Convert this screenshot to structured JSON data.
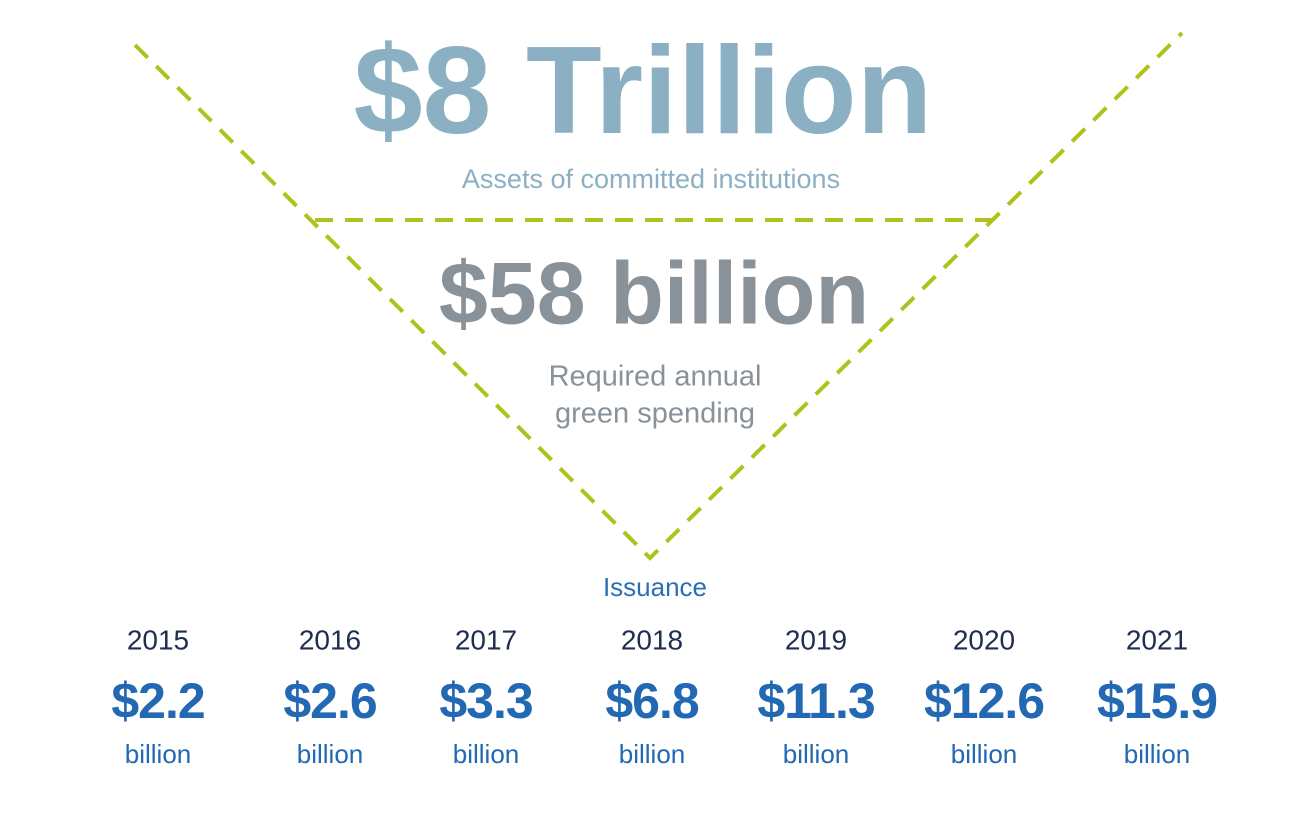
{
  "top": {
    "amount": "$8 Trillion",
    "caption": "Assets of committed institutions"
  },
  "middle": {
    "amount": "$58 billion",
    "caption": [
      "Required annual",
      "green spending"
    ]
  },
  "issuance": {
    "title": "Issuance",
    "items": [
      {
        "year": "2015",
        "amount": "$2.2",
        "unit": "billion"
      },
      {
        "year": "2016",
        "amount": "$2.6",
        "unit": "billion"
      },
      {
        "year": "2017",
        "amount": "$3.3",
        "unit": "billion"
      },
      {
        "year": "2018",
        "amount": "$6.8",
        "unit": "billion"
      },
      {
        "year": "2019",
        "amount": "$11.3",
        "unit": "billion"
      },
      {
        "year": "2020",
        "amount": "$12.6",
        "unit": "billion"
      },
      {
        "year": "2021",
        "amount": "$15.9",
        "unit": "billion"
      }
    ]
  }
}
